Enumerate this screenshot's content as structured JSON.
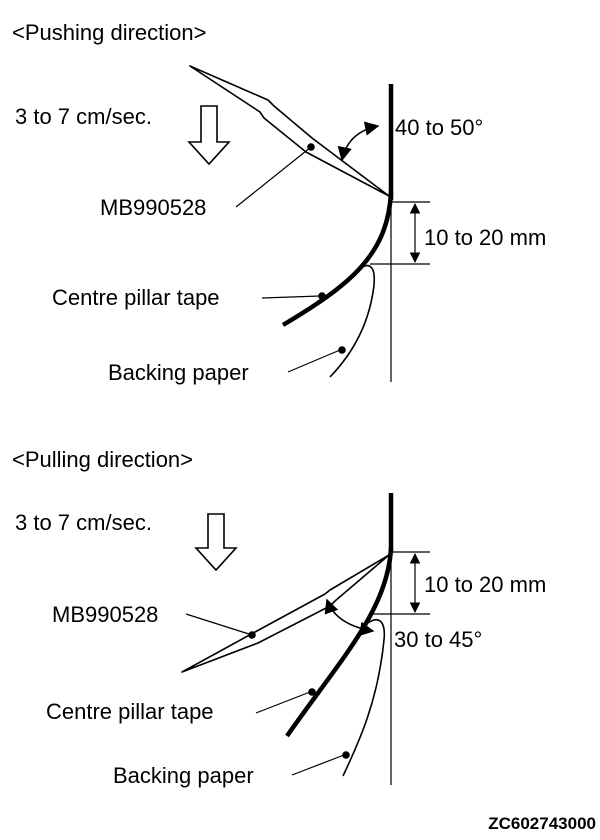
{
  "pushing": {
    "heading": "<Pushing direction>",
    "speed": "3 to 7 cm/sec.",
    "angle": "40 to 50°",
    "tool": "MB990528",
    "distance": "10 to 20 mm",
    "tape": "Centre pillar tape",
    "paper": "Backing paper"
  },
  "pulling": {
    "heading": "<Pulling direction>",
    "speed": "3 to 7 cm/sec.",
    "distance": "10 to 20 mm",
    "tool": "MB990528",
    "angle": "30 to 45°",
    "tape": "Centre pillar tape",
    "paper": "Backing paper"
  },
  "figure_code": "ZC602743000"
}
